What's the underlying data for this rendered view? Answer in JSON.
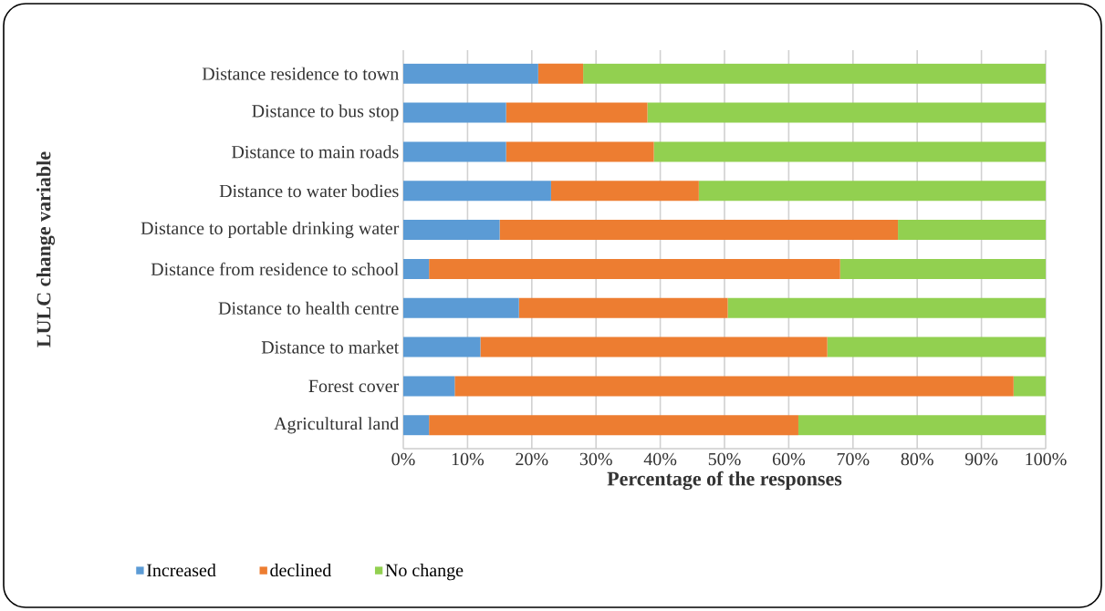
{
  "chart_data": {
    "type": "bar",
    "orientation": "horizontal",
    "stacked": true,
    "xlabel": "Percentage of the responses",
    "ylabel": "LULC change variable",
    "categories": [
      "Distance  residence to town",
      "Distance  to bus stop",
      "Distance to main roads",
      "Distance  to water bodies",
      "Distance to portable drinking water",
      "Distance from residence to school",
      "Distance to health centre",
      "Distance  to market",
      "Forest cover",
      "Agricultural land"
    ],
    "series": [
      {
        "name": "Increased",
        "color": "#5b9bd5",
        "values": [
          21,
          16,
          16,
          23,
          15,
          4,
          18,
          12,
          8,
          4
        ]
      },
      {
        "name": "declined",
        "color": "#ed7d31",
        "values": [
          7,
          22,
          23,
          23,
          62,
          64,
          32.5,
          54,
          87,
          57.5
        ]
      },
      {
        "name": "No change",
        "color": "#92d050",
        "values": [
          72,
          62,
          61,
          54,
          23,
          32,
          49.5,
          34,
          5,
          38.5
        ]
      }
    ],
    "xlim": [
      0,
      100
    ],
    "xticks": [
      {
        "value": 0,
        "label": "0%"
      },
      {
        "value": 10,
        "label": "10%"
      },
      {
        "value": 20,
        "label": "20%"
      },
      {
        "value": 30,
        "label": "30%"
      },
      {
        "value": 40,
        "label": "40%"
      },
      {
        "value": 50,
        "label": "50%"
      },
      {
        "value": 60,
        "label": "60%"
      },
      {
        "value": 70,
        "label": "70%"
      },
      {
        "value": 80,
        "label": "80%"
      },
      {
        "value": 90,
        "label": "90%"
      },
      {
        "value": 100,
        "label": "100%"
      }
    ],
    "grid": "x",
    "legend": "bottom left"
  }
}
